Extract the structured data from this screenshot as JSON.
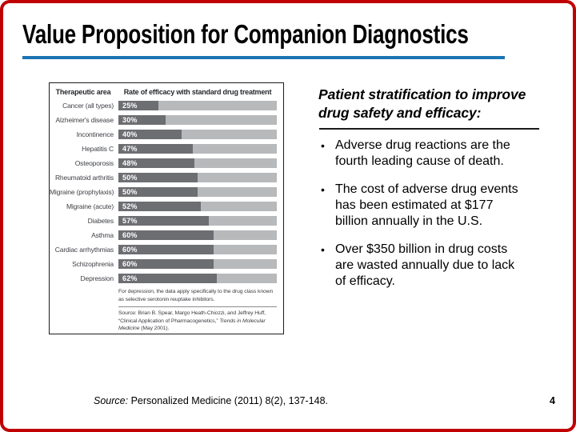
{
  "slide": {
    "title": "Value Proposition for Companion Diagnostics",
    "page_number": "4",
    "footer_source_label": "Source:",
    "footer_source_text": " Personalized Medicine (2011) 8(2), 137-148.",
    "accent_color": "#1c74b4",
    "frame_color": "#c00000"
  },
  "right_panel": {
    "heading": "Patient stratification to improve\ndrug safety and efficacy:",
    "bullet_glyph": "•",
    "bullets": [
      "Adverse drug reactions are the\nfourth leading cause of death.",
      "The cost of adverse drug events\nhas been estimated at $177\nbillion annually in the U.S.",
      "Over $350 billion in drug costs\nare wasted annually due to lack\nof efficacy."
    ]
  },
  "chart_data": {
    "type": "bar",
    "orientation": "horizontal",
    "col1_header": "Therapeutic area",
    "col2_header": "Rate of efficacy with standard drug treatment",
    "categories": [
      "Cancer (all types)",
      "Alzheimer's disease",
      "Incontinence",
      "Hepatitis C",
      "Osteoporosis",
      "Rheumatoid arthritis",
      "Migraine (prophylaxis)",
      "Migraine (acute)",
      "Diabetes",
      "Asthma",
      "Cardiac arrhythmias",
      "Schizophrenia",
      "Depression"
    ],
    "values": [
      25,
      30,
      40,
      47,
      48,
      50,
      50,
      52,
      57,
      60,
      60,
      60,
      62
    ],
    "value_suffix": "%",
    "xlim": [
      0,
      100
    ],
    "grid": false,
    "legend": false,
    "bar_color": "#6d6e71",
    "track_color": "#b7b9bb",
    "footnote": "For depression, the data apply specifically to the drug class known\nas selective serotonin reuptake inhibitors.",
    "source_text": "Source: Brian B. Spear, Margo Heath-Chiozzi, and Jeffrey Huff,\n“Clinical Application of Pharmacogenetics,” ",
    "source_journal_italic": "Trends in Molecular\nMedicine",
    "source_tail": " (May 2001)."
  }
}
